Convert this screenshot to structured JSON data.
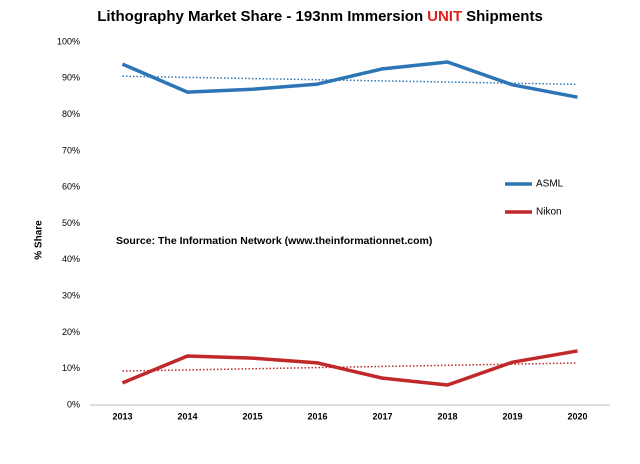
{
  "chart_data": {
    "type": "line",
    "title": [
      "Lithography Market Share - 193nm Immersion",
      "UNIT",
      "Shipments"
    ],
    "title_highlight": 1,
    "title_highlight_color": "#e0201c",
    "annotation": "Source: The Information Network (www.theinformationnet.com)",
    "y_label": "% Share",
    "categories": [
      "2013",
      "2014",
      "2015",
      "2016",
      "2017",
      "2018",
      "2019",
      "2020"
    ],
    "series": [
      {
        "name": "ASML",
        "color": "#2e75b6",
        "values": [
          93.9,
          86.2,
          87.0,
          88.4,
          92.6,
          94.5,
          88.2,
          84.8
        ]
      },
      {
        "name": "Nikon",
        "color": "#c0282a",
        "values": [
          6.1,
          13.5,
          12.9,
          11.6,
          7.4,
          5.5,
          11.8,
          14.9
        ]
      }
    ],
    "trendline": true,
    "ylim": [
      0,
      100
    ],
    "yticks": [
      {
        "value": 0,
        "label": "0%"
      },
      {
        "value": 10,
        "label": "10%"
      },
      {
        "value": 20,
        "label": "20%"
      },
      {
        "value": 30,
        "label": "30%"
      },
      {
        "value": 40,
        "label": "40%"
      },
      {
        "value": 50,
        "label": "50%"
      },
      {
        "value": 60,
        "label": "60%"
      },
      {
        "value": 70,
        "label": "70%"
      },
      {
        "value": 80,
        "label": "80%"
      },
      {
        "value": 90,
        "label": "90%"
      },
      {
        "value": 100,
        "label": "100%"
      }
    ],
    "grid": false,
    "legend": "right"
  }
}
